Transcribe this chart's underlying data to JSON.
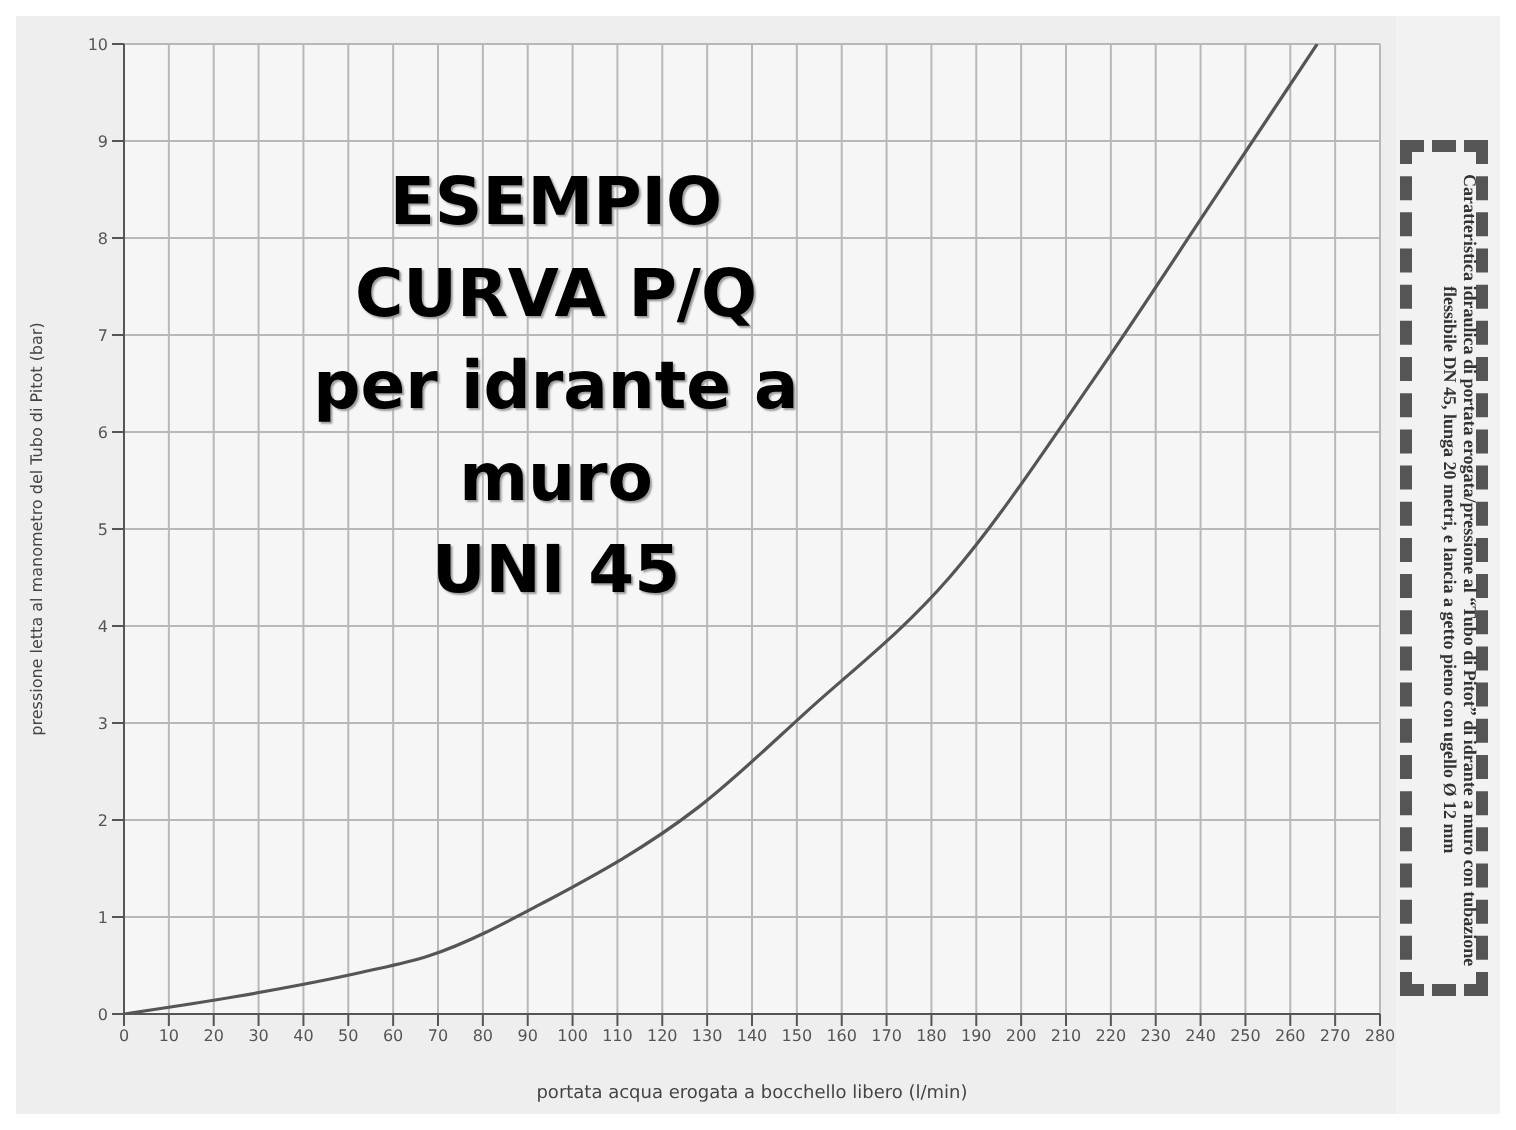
{
  "chart_data": {
    "type": "line",
    "title": "ESEMPIO\nCURVA P/Q\nper idrante a\nmuro\nUNI 45",
    "xlabel": "portata acqua erogata a bocchello libero (l/min)",
    "ylabel": "pressione letta al manometro del Tubo di Pitot (bar)",
    "annotations": [
      "Caratteristica idraulica di portata erogata/pressione al “Tubo di Pitot” di idrante a muro con tubazione flessibile DN 45, lunga 20 metri, e lancia a getto pieno con ugello Ø 12 mm"
    ],
    "x": [
      0,
      25,
      53,
      68,
      94,
      128,
      152,
      184,
      217,
      243,
      266
    ],
    "series": [
      {
        "color": "#555555",
        "values": [
          0,
          0.18,
          0.43,
          0.6,
          1.16,
          2.13,
          3.11,
          4.5,
          6.6,
          8.4,
          10
        ]
      }
    ],
    "xlim": [
      0,
      280
    ],
    "xticks": [
      0,
      10,
      20,
      30,
      40,
      50,
      60,
      70,
      80,
      90,
      100,
      110,
      120,
      130,
      140,
      150,
      160,
      170,
      180,
      190,
      200,
      210,
      220,
      230,
      240,
      250,
      260,
      270,
      280
    ],
    "ylim": [
      0,
      10
    ],
    "yticks": [
      0,
      1,
      2,
      3,
      4,
      5,
      6,
      7,
      8,
      9,
      10
    ],
    "grid": true,
    "legend": false,
    "marker": "none",
    "line_style": "solid"
  }
}
